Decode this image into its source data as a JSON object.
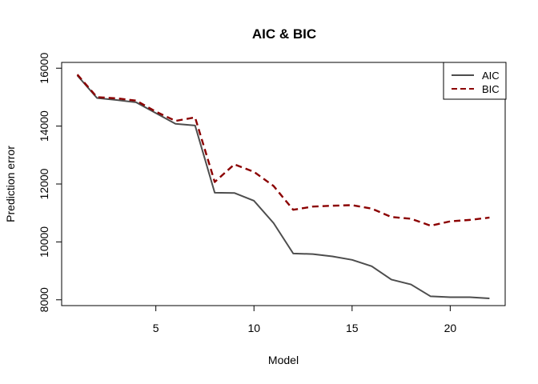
{
  "chart_data": {
    "type": "line",
    "title": "AIC & BIC",
    "xlabel": "Model",
    "ylabel": "Prediction error",
    "xlim": [
      0.2,
      22.8
    ],
    "ylim": [
      7800,
      16200
    ],
    "xticks": [
      5,
      10,
      15,
      20
    ],
    "yticks": [
      8000,
      10000,
      12000,
      14000,
      16000
    ],
    "grid": false,
    "legend_position": "top-right",
    "x": [
      1,
      2,
      3,
      4,
      5,
      6,
      7,
      8,
      9,
      10,
      11,
      12,
      13,
      14,
      15,
      16,
      17,
      18,
      19,
      20,
      21,
      22
    ],
    "series": [
      {
        "name": "AIC",
        "color": "#4d4d4d",
        "style": "solid",
        "values": [
          15750,
          14970,
          14900,
          14820,
          14450,
          14080,
          14020,
          11700,
          11690,
          11420,
          10650,
          9600,
          9580,
          9500,
          9380,
          9160,
          8700,
          8530,
          8120,
          8090,
          8090,
          8050
        ]
      },
      {
        "name": "BIC",
        "color": "#8b0000",
        "style": "dashed",
        "values": [
          15780,
          15000,
          14960,
          14880,
          14500,
          14180,
          14300,
          12070,
          12680,
          12420,
          11930,
          11110,
          11220,
          11250,
          11270,
          11150,
          10860,
          10800,
          10560,
          10710,
          10760,
          10840
        ]
      }
    ]
  }
}
